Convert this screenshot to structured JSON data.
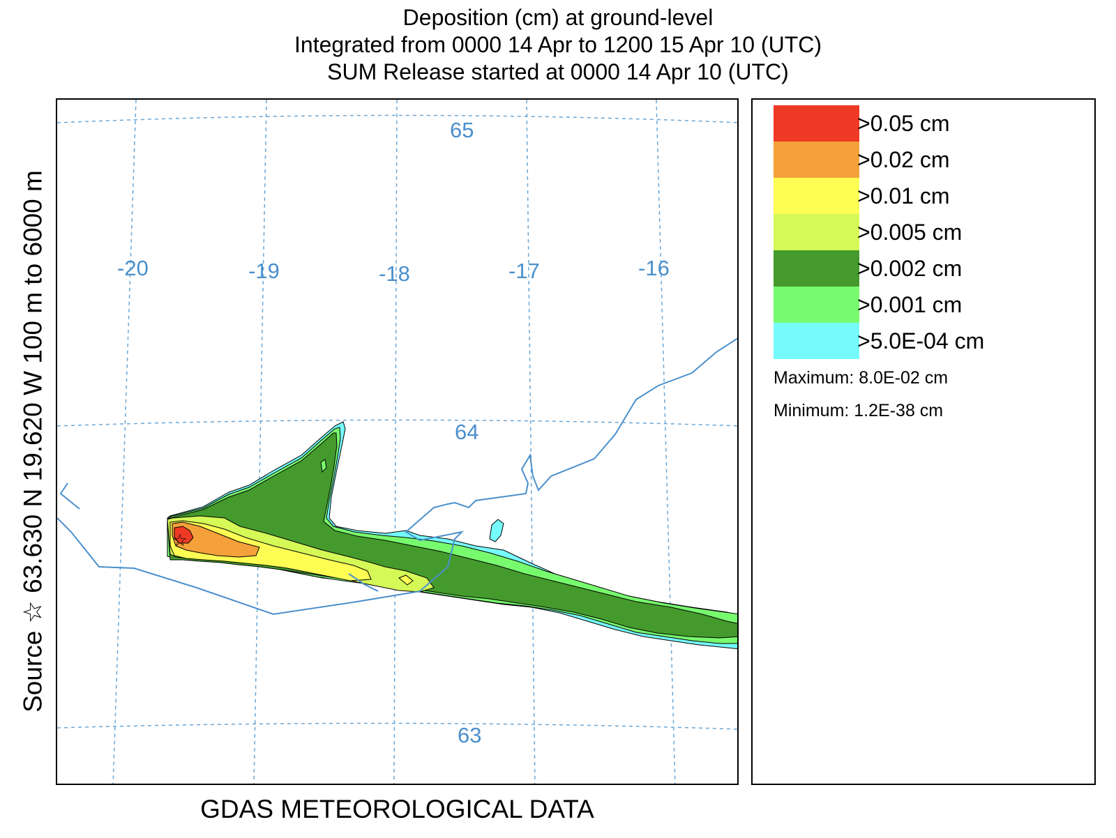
{
  "title": {
    "line1": "Deposition (cm) at ground-level",
    "line2": "Integrated from 0000 14 Apr to 1200 15 Apr 10 (UTC)",
    "line3": "SUM  Release started at 0000 14 Apr 10 (UTC)"
  },
  "side_label": "Source ☆  63.630  N  19.620  W      100 m to  6000 m",
  "bottom_label": "GDAS METEOROLOGICAL DATA",
  "map": {
    "longitude_labels": [
      "-20",
      "-19",
      "-18",
      "-17",
      "-16"
    ],
    "latitude_labels": [
      "65",
      "64",
      "63"
    ],
    "source_marker": "☆"
  },
  "legend": {
    "entries": [
      {
        "label": ">0.05 cm",
        "color": "#ee3a24"
      },
      {
        "label": ">0.02 cm",
        "color": "#f4a13b"
      },
      {
        "label": ">0.01 cm",
        "color": "#fdfd54"
      },
      {
        "label": ">0.005 cm",
        "color": "#d5f957"
      },
      {
        "label": ">0.002 cm",
        "color": "#449a2c"
      },
      {
        "label": ">0.001 cm",
        "color": "#78fa6e"
      },
      {
        "label": ">5.0E-04 cm",
        "color": "#76fbfd"
      }
    ],
    "maximum": "Maximum: 8.0E-02 cm",
    "minimum": "Minimum: 1.2E-38 cm"
  },
  "colors": {
    "grid": "#6aa6d6",
    "coastline": "#4a8fcc"
  }
}
